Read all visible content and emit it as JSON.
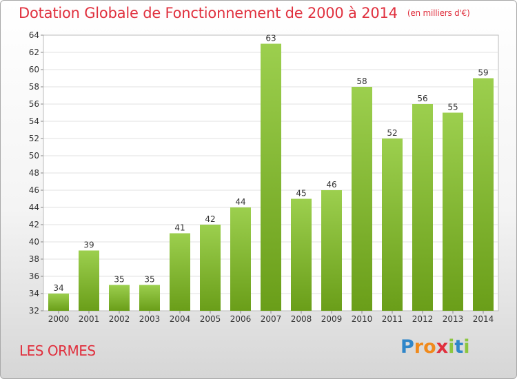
{
  "header": {
    "title": "Dotation Globale de Fonctionnement de 2000 à 2014",
    "unit": "(en milliers d'€)"
  },
  "footer": {
    "commune": "LES ORMES",
    "logo_letters": [
      "P",
      "r",
      "o",
      "x",
      "i",
      "t",
      "i"
    ]
  },
  "colors": {
    "bar_light": "#9ccf4e",
    "bar_dark": "#6a9e19",
    "title": "#e0303e",
    "logo": [
      "#2f86c9",
      "#f08a1c",
      "#f08a1c",
      "#e0303e",
      "#8cc63f",
      "#2f86c9",
      "#8cc63f"
    ]
  },
  "chart_data": {
    "type": "bar",
    "title": "Dotation Globale de Fonctionnement de 2000 à 2014",
    "subtitle": "(en milliers d'€)",
    "categories": [
      "2000",
      "2001",
      "2002",
      "2003",
      "2004",
      "2005",
      "2006",
      "2007",
      "2008",
      "2009",
      "2010",
      "2011",
      "2012",
      "2013",
      "2014"
    ],
    "values": [
      34,
      39,
      35,
      35,
      41,
      42,
      44,
      63,
      45,
      46,
      58,
      52,
      56,
      55,
      59
    ],
    "ylim": [
      32,
      64
    ],
    "yticks": [
      32,
      34,
      36,
      38,
      40,
      42,
      44,
      46,
      48,
      50,
      52,
      54,
      56,
      58,
      60,
      62,
      64
    ],
    "grid": true,
    "legend": "none",
    "xlabel": "",
    "ylabel": ""
  }
}
